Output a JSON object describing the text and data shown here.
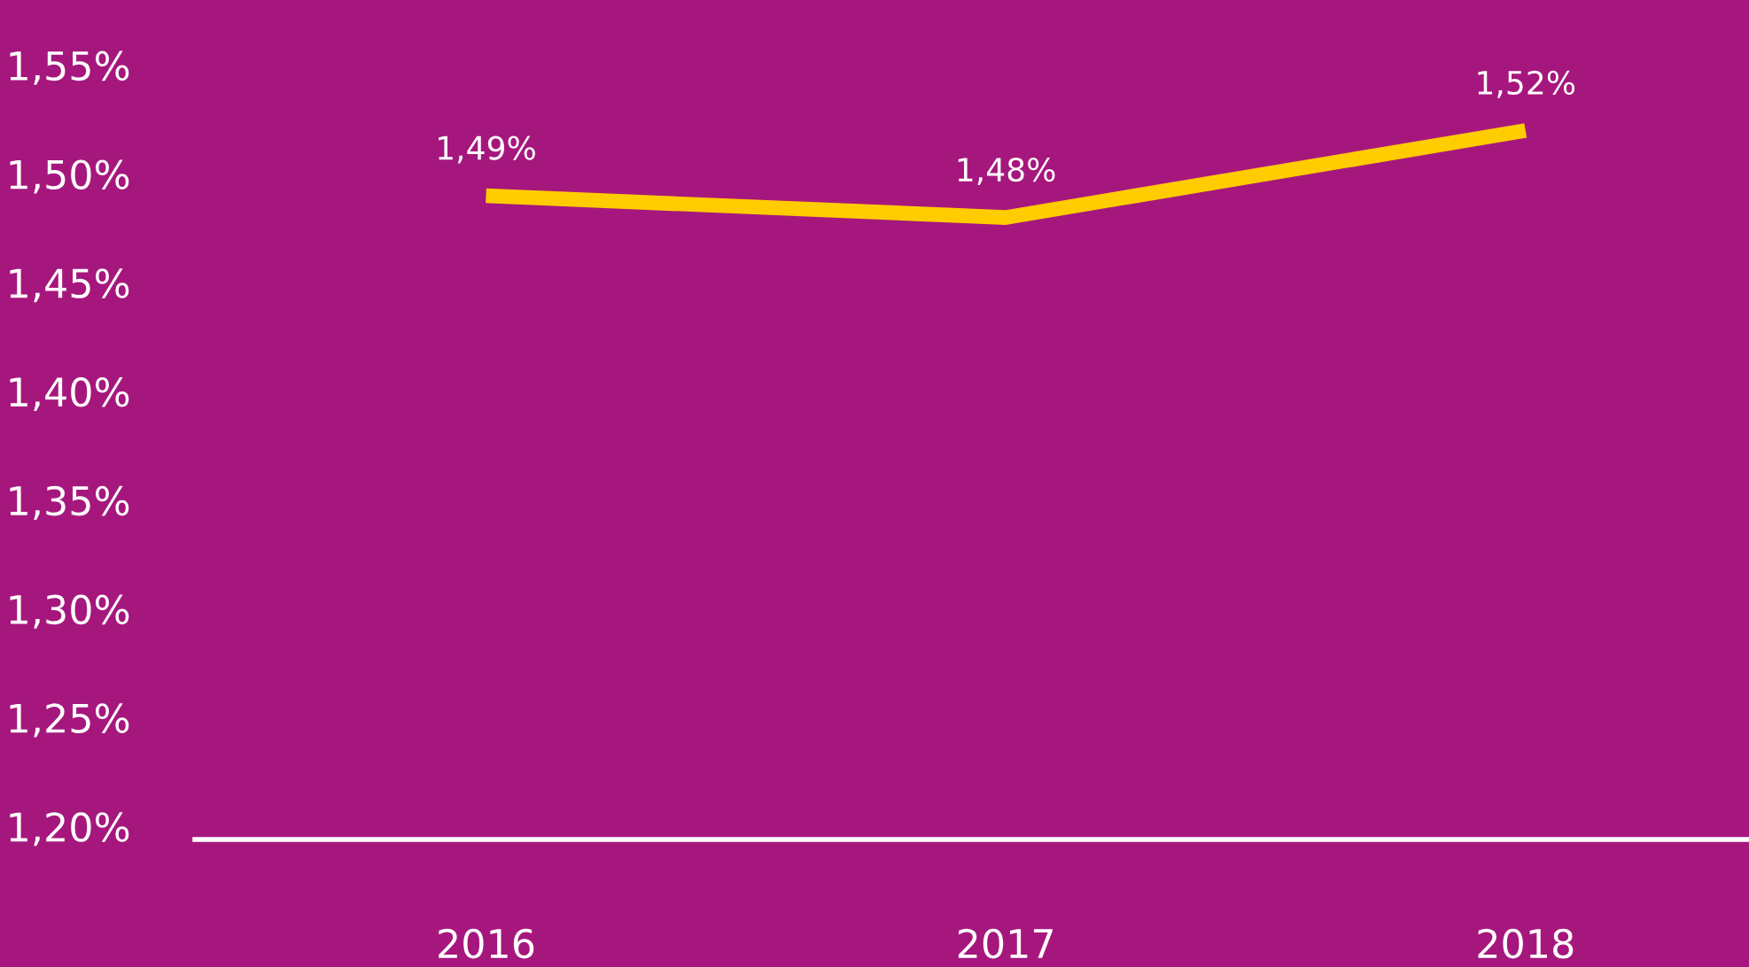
{
  "chart_data": {
    "type": "line",
    "categories": [
      "2016",
      "2017",
      "2018"
    ],
    "series": [
      {
        "color": "#ffcc00",
        "values": [
          1.49,
          1.48,
          1.52
        ],
        "value_labels": [
          "1,49%",
          "1,48%",
          "1,52%"
        ]
      }
    ],
    "ylim": [
      1.194,
      1.58
    ],
    "yticks": [
      {
        "value": 1.2,
        "label": "1,20%"
      },
      {
        "value": 1.25,
        "label": "1,25%"
      },
      {
        "value": 1.3,
        "label": "1,30%"
      },
      {
        "value": 1.35,
        "label": "1,35%"
      },
      {
        "value": 1.4,
        "label": "1,40%"
      },
      {
        "value": 1.45,
        "label": "1,45%"
      },
      {
        "value": 1.5,
        "label": "1,50%"
      },
      {
        "value": 1.55,
        "label": "1,55%"
      }
    ],
    "grid": false,
    "legend": false,
    "marker": "none",
    "line_style": "solid"
  }
}
